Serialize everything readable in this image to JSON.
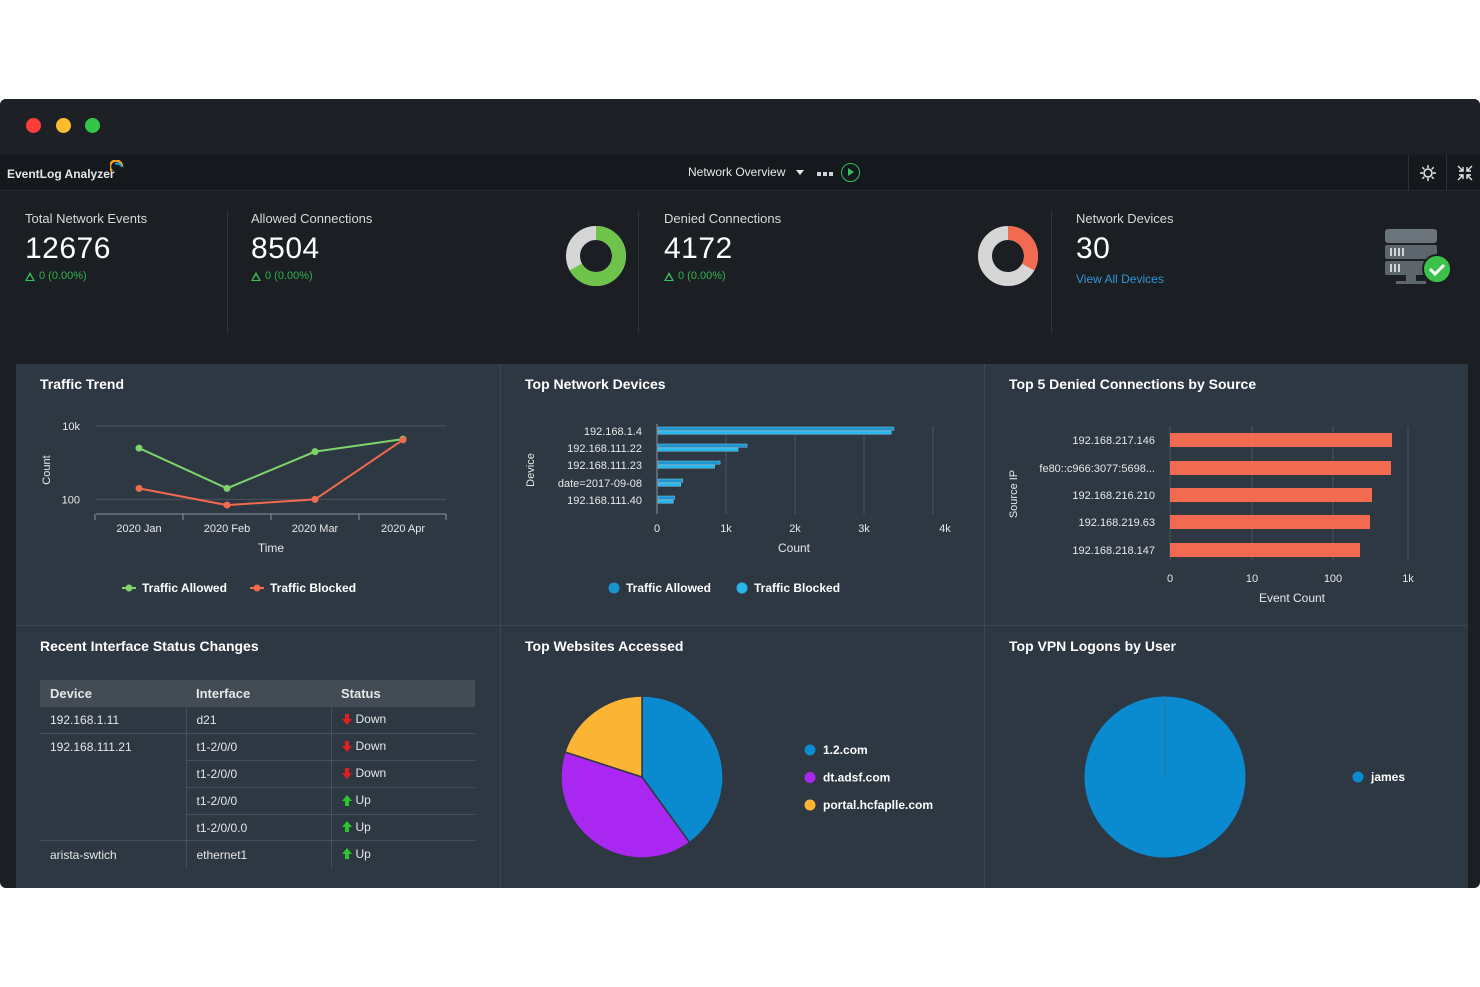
{
  "app": {
    "logo_text": "EventLog Analyzer",
    "view_selector": "Network Overview"
  },
  "kpis": {
    "total_events": {
      "label": "Total Network Events",
      "value": "12676",
      "delta": "0 (0.00%)"
    },
    "allowed": {
      "label": "Allowed Connections",
      "value": "8504",
      "delta": "0 (0.00%)",
      "donut_fraction": 0.67,
      "color": "#6ec44a"
    },
    "denied": {
      "label": "Denied Connections",
      "value": "4172",
      "delta": "0 (0.00%)",
      "donut_fraction": 0.33,
      "color": "#f26a4f"
    },
    "devices": {
      "label": "Network Devices",
      "value": "30",
      "link": "View All Devices"
    }
  },
  "panels": {
    "traffic_trend": {
      "title": "Traffic Trend"
    },
    "top_devices": {
      "title": "Top Network Devices"
    },
    "top_denied": {
      "title": "Top 5 Denied Connections by Source"
    },
    "interface_status": {
      "title": "Recent Interface Status Changes"
    },
    "top_websites": {
      "title": "Top Websites Accessed"
    },
    "vpn_logons": {
      "title": "Top VPN Logons by User"
    }
  },
  "interface_table": {
    "headers": [
      "Device",
      "Interface",
      "Status"
    ],
    "rows": [
      {
        "device": "192.168.1.11",
        "interface": "d21",
        "status": "Down"
      },
      {
        "device": "192.168.111.21",
        "interface": "t1-2/0/0",
        "status": "Down"
      },
      {
        "device": "",
        "interface": "t1-2/0/0",
        "status": "Down"
      },
      {
        "device": "",
        "interface": "t1-2/0/0",
        "status": "Up"
      },
      {
        "device": "",
        "interface": "t1-2/0/0.0",
        "status": "Up"
      },
      {
        "device": "arista-swtich",
        "interface": "ethernet1",
        "status": "Up"
      }
    ]
  },
  "chart_data": [
    {
      "type": "line",
      "title": "Traffic Trend",
      "xlabel": "Time",
      "ylabel": "Count",
      "yscale": "log",
      "yticks": [
        "100",
        "10k"
      ],
      "categories": [
        "2020 Jan",
        "2020 Feb",
        "2020 Mar",
        "2020 Apr"
      ],
      "series": [
        {
          "name": "Traffic Allowed",
          "values": [
            2500,
            200,
            2000,
            4400
          ],
          "color": "#7ed36a"
        },
        {
          "name": "Traffic Blocked",
          "values": [
            200,
            70,
            100,
            4200
          ],
          "color": "#f26a4f"
        }
      ],
      "legend": "bottom"
    },
    {
      "type": "bar",
      "orientation": "horizontal",
      "title": "Top Network Devices",
      "xlabel": "Count",
      "ylabel": "Device",
      "xticks": [
        "0",
        "1k",
        "2k",
        "3k",
        "4k"
      ],
      "xlim": [
        0,
        4000
      ],
      "categories": [
        "192.168.1.4",
        "192.168.111.22",
        "192.168.111.23",
        "date=2017-09-08",
        "192.168.111.40"
      ],
      "category_labels_shown": [
        "192.168.1.4",
        "192.168.111.22",
        "192.168.111.23",
        "date=2017-09-08",
        "192.168.111.40"
      ],
      "series": [
        {
          "name": "Traffic Allowed",
          "values": [
            3420,
            1290,
            900,
            360,
            240
          ],
          "color": "#1994cf"
        },
        {
          "name": "Traffic Blocked",
          "values": [
            3380,
            1160,
            820,
            330,
            220
          ],
          "color": "#27b5ea"
        }
      ],
      "legend": "bottom"
    },
    {
      "type": "bar",
      "orientation": "horizontal",
      "title": "Top 5 Denied Connections by Source",
      "xlabel": "Event Count",
      "ylabel": "Source IP",
      "xscale": "log",
      "xticks": [
        "0",
        "10",
        "100",
        "1k"
      ],
      "categories": [
        "192.168.217.146",
        "fe80::c966:3077:5698...",
        "192.168.216.210",
        "192.168.219.63",
        "192.168.218.147"
      ],
      "values": [
        620,
        600,
        330,
        300,
        220
      ],
      "color": "#f26a4f"
    },
    {
      "type": "pie",
      "title": "Top Websites Accessed",
      "labels": [
        "1.2.com",
        "dt.adsf.com",
        "portal.hcfaplle.com"
      ],
      "values": [
        40,
        40,
        20
      ],
      "colors": [
        "#0a8bd0",
        "#a927f0",
        "#fbb433"
      ],
      "legend": "right"
    },
    {
      "type": "pie",
      "title": "Top VPN Logons by User",
      "labels": [
        "james"
      ],
      "values": [
        100
      ],
      "colors": [
        "#0a8bd0"
      ],
      "legend": "right"
    }
  ]
}
